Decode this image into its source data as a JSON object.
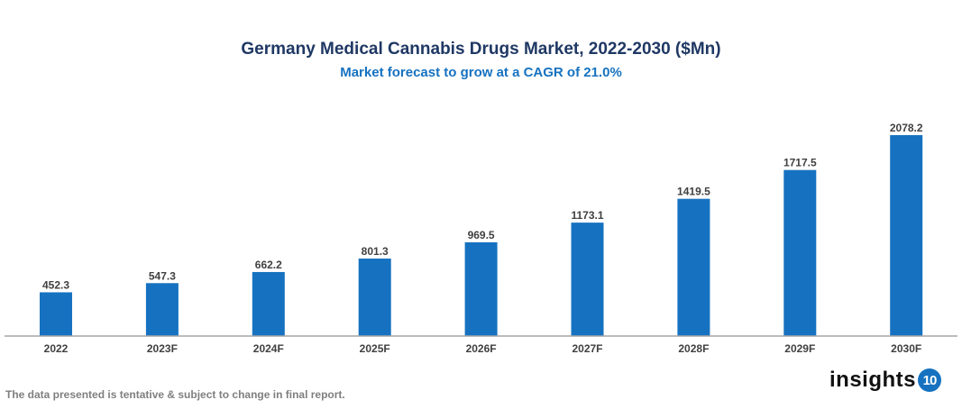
{
  "chart_data": {
    "type": "bar",
    "title": "Germany Medical Cannabis Drugs Market, 2022-2030 ($Mn)",
    "subtitle": "Market forecast to grow at a CAGR of 21.0%",
    "categories": [
      "2022",
      "2023F",
      "2024F",
      "2025F",
      "2026F",
      "2027F",
      "2028F",
      "2029F",
      "2030F"
    ],
    "values": [
      452.3,
      547.3,
      662.2,
      801.3,
      969.5,
      1173.1,
      1419.5,
      1717.5,
      2078.2
    ],
    "data_labels": [
      "452.3",
      "547.3",
      "662.2",
      "801.3",
      "969.5",
      "1173.1",
      "1419.5",
      "1717.5",
      "2078.2"
    ],
    "xlabel": "",
    "ylabel": "",
    "ylim": [
      0,
      2078.2
    ],
    "grid": false,
    "bar_color": "#1672c0"
  },
  "footnote": "The data presented is tentative & subject to change in final report.",
  "logo": {
    "text": "insights",
    "badge": "10"
  }
}
